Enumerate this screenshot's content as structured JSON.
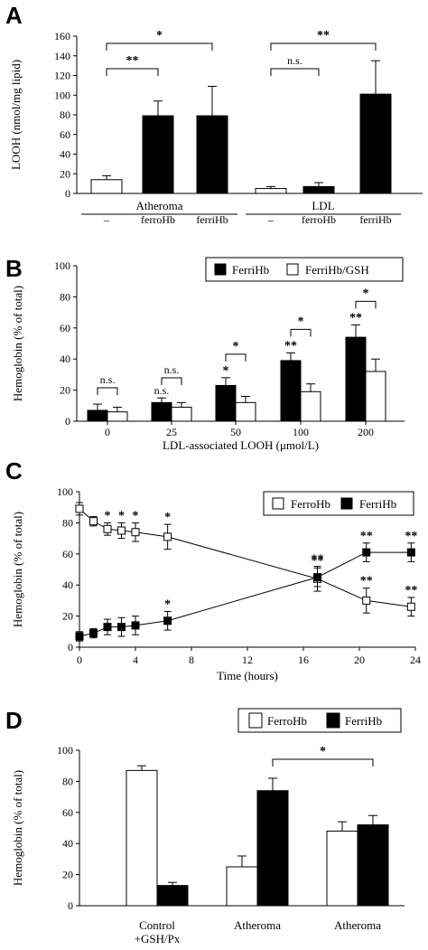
{
  "panels": {
    "A": {
      "letter": "A"
    },
    "B": {
      "letter": "B"
    },
    "C": {
      "letter": "C"
    },
    "D": {
      "letter": "D"
    }
  },
  "chart_data": [
    {
      "id": "A",
      "type": "bar",
      "ylabel": "LOOH (nmol/mg lipid)",
      "ylim": [
        0,
        160
      ],
      "yticks": [
        0,
        20,
        40,
        60,
        80,
        100,
        120,
        140,
        160
      ],
      "groups": [
        {
          "name": "Atheroma",
          "bars": [
            {
              "label": "–",
              "value": 14,
              "err": 4,
              "fill": "white"
            },
            {
              "label": "ferroHb",
              "value": 79,
              "err": 15,
              "fill": "black"
            },
            {
              "label": "ferriHb",
              "value": 79,
              "err": 30,
              "fill": "black"
            }
          ]
        },
        {
          "name": "LDL",
          "bars": [
            {
              "label": "–",
              "value": 5,
              "err": 2,
              "fill": "white"
            },
            {
              "label": "ferroHb",
              "value": 7,
              "err": 4,
              "fill": "black"
            },
            {
              "label": "ferriHb",
              "value": 101,
              "err": 34,
              "fill": "black"
            }
          ]
        }
      ],
      "brackets": [
        {
          "from": [
            0,
            0
          ],
          "to": [
            0,
            1
          ],
          "label": "**"
        },
        {
          "from": [
            0,
            0
          ],
          "to": [
            0,
            2
          ],
          "label": "*"
        },
        {
          "from": [
            1,
            0
          ],
          "to": [
            1,
            1
          ],
          "label": "n.s."
        },
        {
          "from": [
            1,
            0
          ],
          "to": [
            1,
            2
          ],
          "label": "**"
        }
      ]
    },
    {
      "id": "B",
      "type": "bar",
      "ylabel": "Hemoglobin (% of total)",
      "xlabel": "LDL-associated LOOH (μmol/L)",
      "ylim": [
        0,
        100
      ],
      "yticks": [
        0,
        20,
        40,
        60,
        80,
        100
      ],
      "categories": [
        "0",
        "25",
        "50",
        "100",
        "200"
      ],
      "legend": "top-right",
      "series": [
        {
          "name": "FerriHb",
          "fill": "black",
          "values": [
            7,
            12,
            23,
            39,
            54
          ],
          "err": [
            4,
            3,
            5,
            5,
            8
          ],
          "marks": [
            "",
            "n.s.",
            "*",
            "**",
            "**"
          ]
        },
        {
          "name": "FerriHb/GSH",
          "fill": "white",
          "values": [
            6,
            9,
            12,
            19,
            32
          ],
          "err": [
            3,
            3,
            4,
            5,
            8
          ]
        }
      ],
      "brackets": [
        "n.s.",
        "n.s.",
        "*",
        "*",
        "*"
      ]
    },
    {
      "id": "C",
      "type": "line",
      "ylabel": "Hemoglobin (% of total)",
      "xlabel": "Time (hours)",
      "xlim": [
        0,
        24
      ],
      "ylim": [
        0,
        100
      ],
      "xticks": [
        0,
        4,
        8,
        12,
        16,
        20,
        24
      ],
      "yticks": [
        0,
        20,
        40,
        60,
        80,
        100
      ],
      "legend": "top-right",
      "series": [
        {
          "name": "FerroHb",
          "marker": "open-square",
          "x": [
            0,
            1,
            2,
            3,
            4,
            6.3,
            17,
            20.5,
            23.7
          ],
          "y": [
            89,
            81,
            76,
            75,
            74,
            71,
            44,
            30,
            26
          ],
          "err": [
            4,
            3,
            4,
            5,
            6,
            8,
            8,
            8,
            6
          ],
          "marks": [
            "",
            "",
            "*",
            "*",
            "*",
            "*",
            "**",
            "**",
            "**"
          ]
        },
        {
          "name": "FerriHb",
          "marker": "filled-square",
          "x": [
            0,
            1,
            2,
            3,
            4,
            6.3,
            17,
            20.5,
            23.7
          ],
          "y": [
            7,
            9,
            13,
            13,
            14,
            17,
            45,
            61,
            61
          ],
          "err": [
            3,
            3,
            5,
            6,
            6,
            6,
            6,
            6,
            6
          ],
          "marks": [
            "",
            "",
            "",
            "",
            "",
            "*",
            "**",
            "**",
            "**"
          ]
        }
      ]
    },
    {
      "id": "D",
      "type": "bar",
      "ylabel": "Hemoglobin (% of total)",
      "ylim": [
        0,
        100
      ],
      "yticks": [
        0,
        20,
        40,
        60,
        80,
        100
      ],
      "categories": [
        "Control\n+GSH/Px",
        "Atheroma",
        "Atheroma"
      ],
      "legend": "top-right",
      "series": [
        {
          "name": "FerroHb",
          "fill": "white",
          "values": [
            87,
            25,
            48
          ],
          "err": [
            3,
            7,
            6
          ]
        },
        {
          "name": "FerriHb",
          "fill": "black",
          "values": [
            13,
            74,
            52
          ],
          "err": [
            2,
            8,
            6
          ]
        }
      ],
      "brackets": [
        {
          "from": 1,
          "to": 2,
          "label": "*"
        }
      ]
    }
  ]
}
